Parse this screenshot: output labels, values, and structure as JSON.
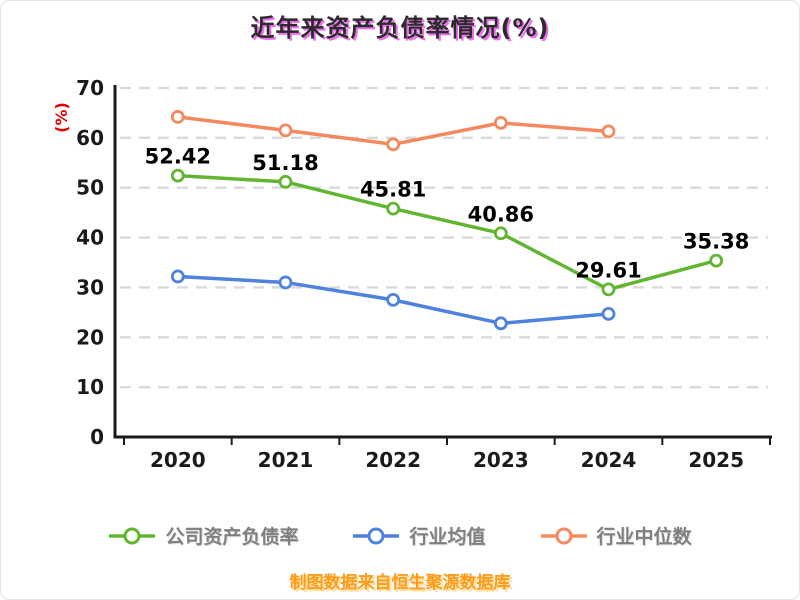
{
  "title": "近年来资产负债率情况(%)",
  "y_axis_label": "(%)",
  "source_note": "制图数据来自恒生聚源数据库",
  "colors": {
    "company": "#62b530",
    "industry_avg": "#4d82df",
    "industry_median": "#f4885e",
    "axis": "#1a1a1a",
    "grid": "#d9d9d9",
    "title_shadow": "#ee6fee",
    "y_label": "#e60000",
    "source": "#ff9b1a"
  },
  "legend": [
    {
      "label": "公司资产负债率",
      "color": "#62b530"
    },
    {
      "label": "行业均值",
      "color": "#4d82df"
    },
    {
      "label": "行业中位数",
      "color": "#f4885e"
    }
  ],
  "chart_data": {
    "type": "line",
    "title": "近年来资产负债率情况(%)",
    "categories": [
      "2020",
      "2021",
      "2022",
      "2023",
      "2024",
      "2025"
    ],
    "series": [
      {
        "name": "公司资产负债率",
        "color": "#62b530",
        "values": [
          52.42,
          51.18,
          45.81,
          40.86,
          29.61,
          35.38
        ],
        "show_labels": true
      },
      {
        "name": "行业均值",
        "color": "#4d82df",
        "values": [
          32.2,
          31.0,
          27.5,
          22.8,
          24.7,
          null
        ],
        "show_labels": false
      },
      {
        "name": "行业中位数",
        "color": "#f4885e",
        "values": [
          64.2,
          61.5,
          58.7,
          63.0,
          61.3,
          null
        ],
        "show_labels": false
      }
    ],
    "ylabel": "(%)",
    "ylim": [
      0,
      70
    ],
    "yticks": [
      0,
      10,
      20,
      30,
      40,
      50,
      60,
      70
    ],
    "grid": "horizontal-dashed",
    "legend_position": "bottom"
  }
}
